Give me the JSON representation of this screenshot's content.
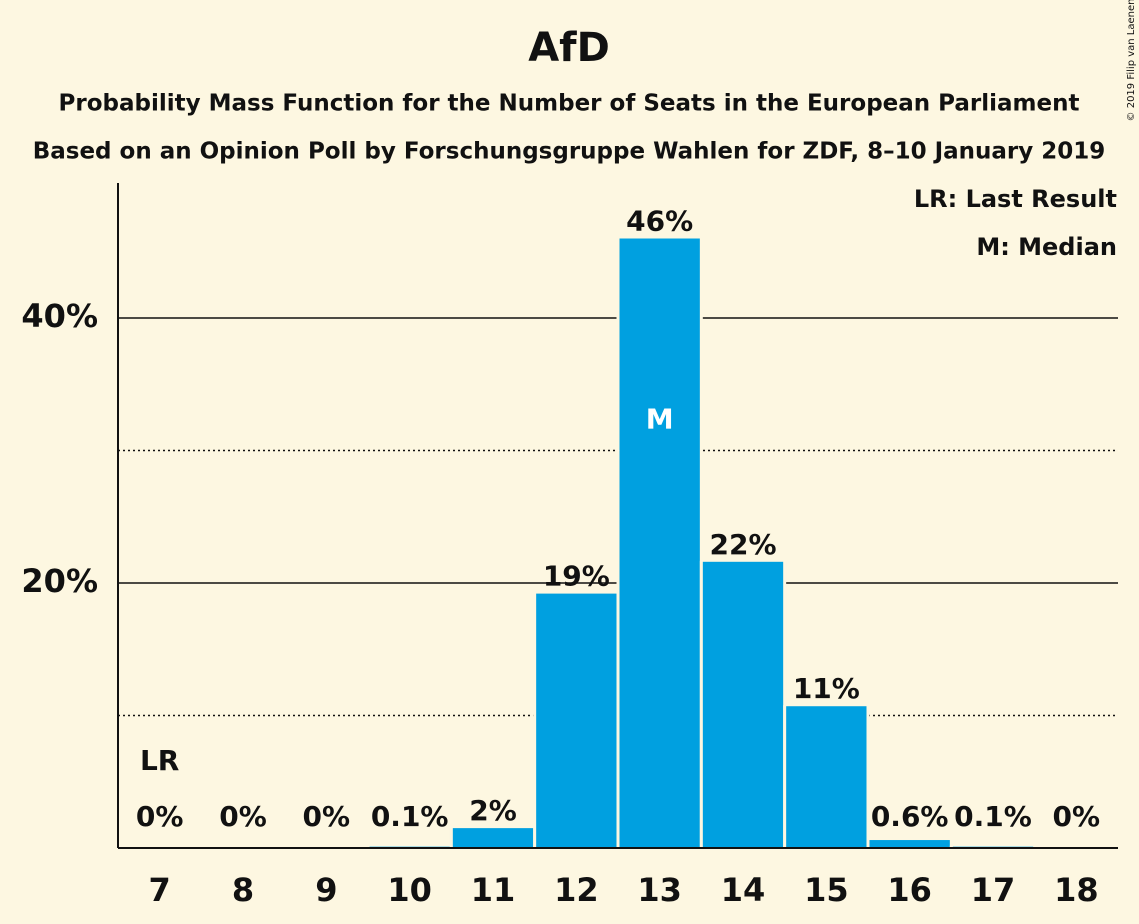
{
  "chart_data": {
    "type": "bar",
    "title": "AfD",
    "subtitle": "Probability Mass Function for the Number of Seats in the European Parliament",
    "subtitle2": "Based on an Opinion Poll by Forschungsgruppe Wahlen for ZDF, 8–10 January 2019",
    "copyright": "© 2019 Filip van Laenen",
    "legend": [
      "LR: Last Result",
      "M: Median"
    ],
    "categories": [
      "7",
      "8",
      "9",
      "10",
      "11",
      "12",
      "13",
      "14",
      "15",
      "16",
      "17",
      "18"
    ],
    "values": [
      0,
      0,
      0,
      0.1,
      1.5,
      19.2,
      46,
      21.6,
      10.7,
      0.6,
      0.1,
      0
    ],
    "value_labels": [
      "0%",
      "0%",
      "0%",
      "0.1%",
      "2%",
      "19%",
      "46%",
      "22%",
      "11%",
      "0.6%",
      "0.1%",
      "0%"
    ],
    "annotations": [
      {
        "category": "7",
        "text": "LR"
      },
      {
        "category": "13",
        "text": "M"
      }
    ],
    "color": "#00a0e0",
    "ylim": [
      0,
      50
    ],
    "yticks": [
      {
        "value": 20,
        "label": "20%"
      },
      {
        "value": 40,
        "label": "40%"
      }
    ],
    "minor_yticks": [
      10,
      30
    ],
    "grid": true
  }
}
